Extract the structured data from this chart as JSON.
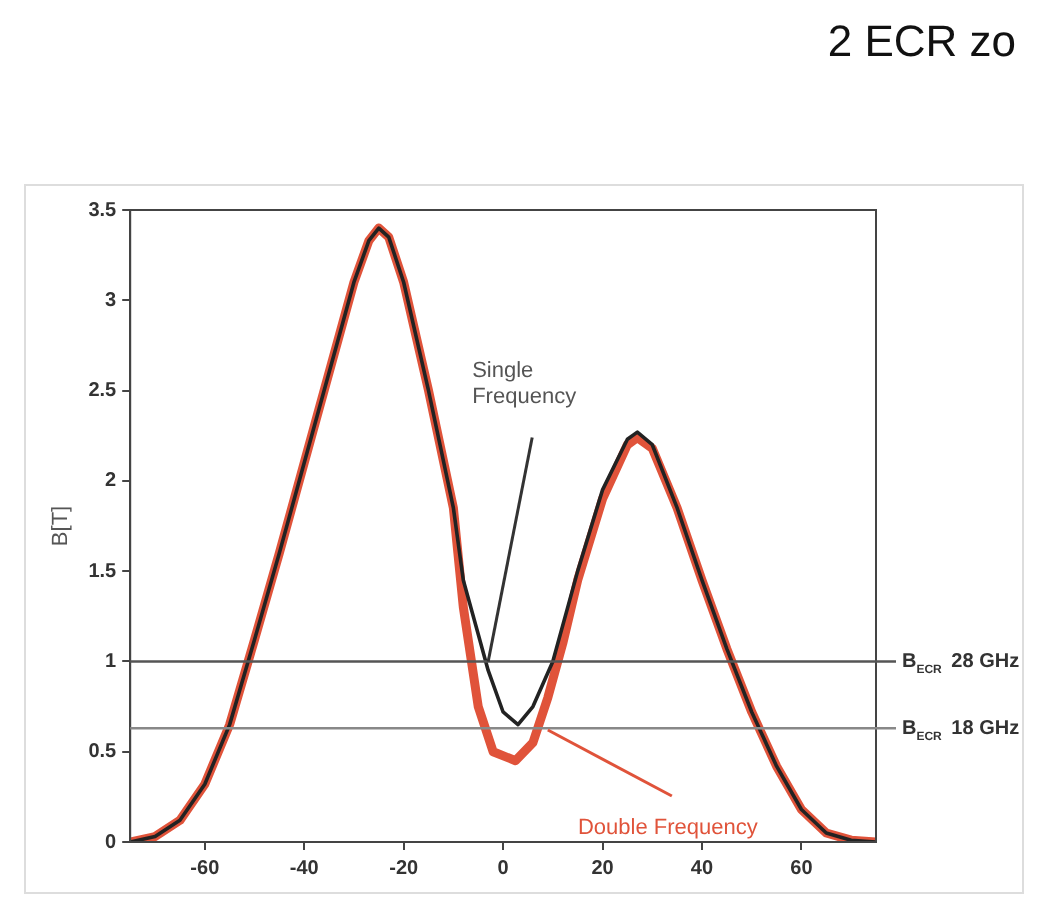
{
  "chart_data": {
    "type": "line",
    "title": "2 ECR zo",
    "ylabel": "B[T]",
    "xlim": [
      -75,
      75
    ],
    "xticks": [
      -60,
      -40,
      -20,
      0,
      20,
      40,
      60
    ],
    "ylim": [
      0,
      3.5
    ],
    "yticks": [
      0,
      0.5,
      1,
      1.5,
      2,
      2.5,
      3,
      3.5
    ],
    "grid": false,
    "legend": false,
    "marker": "none",
    "line_style": "solid",
    "series": [
      {
        "color": "#222222",
        "x": [
          -75,
          -70,
          -65,
          -60,
          -55,
          -50,
          -45,
          -40,
          -35,
          -30,
          -27,
          -25,
          -23,
          -20,
          -15,
          -10,
          -8,
          -5,
          -3,
          0,
          3,
          6,
          10,
          15,
          20,
          25,
          27,
          30,
          35,
          40,
          45,
          50,
          55,
          60,
          65,
          70,
          75
        ],
        "values": [
          0,
          0.03,
          0.12,
          0.32,
          0.65,
          1.12,
          1.6,
          2.1,
          2.6,
          3.1,
          3.33,
          3.4,
          3.35,
          3.1,
          2.5,
          1.85,
          1.45,
          1.15,
          0.95,
          0.72,
          0.65,
          0.75,
          1.0,
          1.5,
          1.95,
          2.23,
          2.27,
          2.2,
          1.85,
          1.45,
          1.07,
          0.72,
          0.42,
          0.18,
          0.05,
          0.01,
          0
        ]
      },
      {
        "color": "#e0533a",
        "x": [
          -75,
          -70,
          -65,
          -60,
          -55,
          -50,
          -45,
          -40,
          -35,
          -30,
          -27,
          -25,
          -23,
          -20,
          -15,
          -10,
          -8,
          -5,
          -2,
          2.5,
          6,
          9,
          12,
          15,
          20,
          25,
          27,
          30,
          35,
          40,
          45,
          50,
          55,
          60,
          65,
          70,
          75
        ],
        "values": [
          0,
          0.03,
          0.12,
          0.32,
          0.65,
          1.12,
          1.6,
          2.1,
          2.6,
          3.1,
          3.33,
          3.4,
          3.35,
          3.1,
          2.5,
          1.85,
          1.3,
          0.75,
          0.5,
          0.45,
          0.55,
          0.8,
          1.1,
          1.45,
          1.9,
          2.2,
          2.24,
          2.18,
          1.85,
          1.45,
          1.07,
          0.72,
          0.42,
          0.18,
          0.05,
          0.01,
          0
        ]
      }
    ],
    "ref_lines": [
      {
        "axis": "y",
        "value": 1,
        "label": "B$_{ECR}$ 28 GHz",
        "color": "#555555"
      },
      {
        "axis": "y",
        "value": 0.63,
        "label": "B$_{ECR}$ 18 GHz",
        "color": "#888888"
      }
    ],
    "annotations": [
      {
        "text": "Single Frequency",
        "x": -3,
        "y": 1
      },
      {
        "text": "Double Frequency",
        "x": 9,
        "y": 0.62
      }
    ]
  }
}
